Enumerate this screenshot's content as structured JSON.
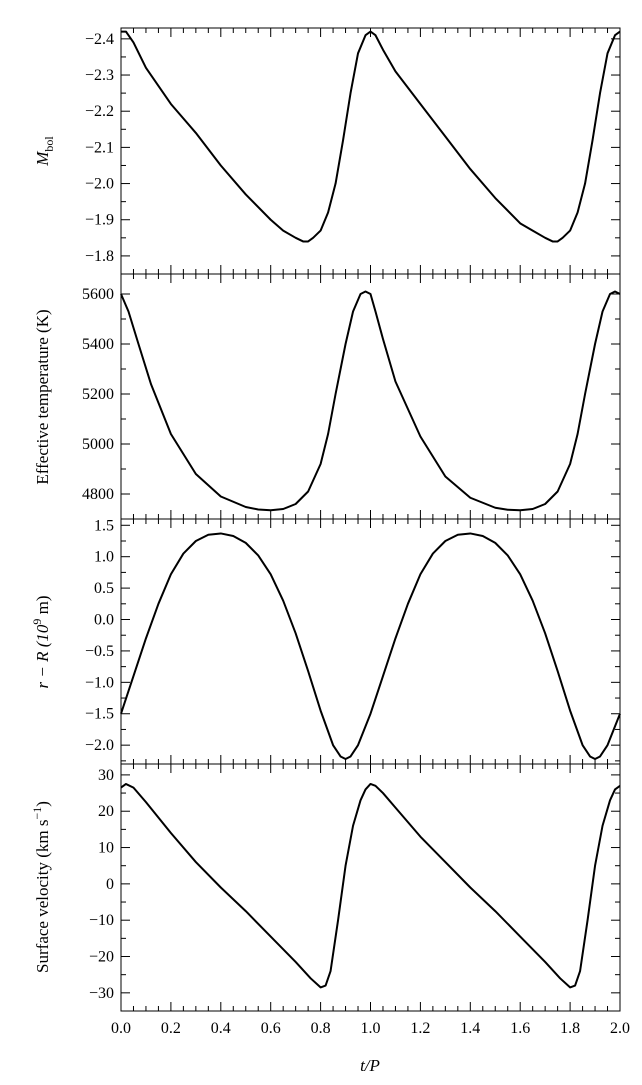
{
  "chart_data": [
    {
      "type": "line",
      "panel": "top",
      "ylabel": "M_bol",
      "ylabel_main": "M",
      "ylabel_sub": "bol",
      "ylim": [
        -1.75,
        -2.43
      ],
      "y_inverted": true,
      "yticks": [
        -2.4,
        -2.3,
        -2.2,
        -2.1,
        -2.0,
        -1.9,
        -1.8
      ],
      "ytick_labels": [
        "−2.4",
        "−2.3",
        "−2.2",
        "−2.1",
        "−2.0",
        "−1.9",
        "−1.8"
      ],
      "xlim": [
        0,
        2
      ],
      "series": [
        {
          "x": [
            0,
            0.02,
            0.05,
            0.1,
            0.2,
            0.3,
            0.4,
            0.5,
            0.6,
            0.65,
            0.7,
            0.73,
            0.75,
            0.77,
            0.8,
            0.83,
            0.86,
            0.89,
            0.92,
            0.95,
            0.98,
            1.0,
            1.02,
            1.05,
            1.1,
            1.2,
            1.3,
            1.4,
            1.5,
            1.6,
            1.65,
            1.7,
            1.73,
            1.75,
            1.77,
            1.8,
            1.83,
            1.86,
            1.89,
            1.92,
            1.95,
            1.98,
            2.0
          ],
          "y": [
            -2.42,
            -2.42,
            -2.39,
            -2.32,
            -2.22,
            -2.14,
            -2.05,
            -1.97,
            -1.9,
            -1.87,
            -1.85,
            -1.84,
            -1.84,
            -1.85,
            -1.87,
            -1.92,
            -2.0,
            -2.12,
            -2.25,
            -2.36,
            -2.41,
            -2.42,
            -2.41,
            -2.37,
            -2.31,
            -2.22,
            -2.13,
            -2.04,
            -1.96,
            -1.89,
            -1.87,
            -1.85,
            -1.84,
            -1.84,
            -1.85,
            -1.87,
            -1.92,
            -2.0,
            -2.12,
            -2.25,
            -2.36,
            -2.41,
            -2.42
          ]
        }
      ]
    },
    {
      "type": "line",
      "panel": "second",
      "ylabel": "Effective temperature (K)",
      "ylim": [
        4700,
        5680
      ],
      "yticks": [
        4800,
        5000,
        5200,
        5400,
        5600
      ],
      "ytick_labels": [
        "4800",
        "5000",
        "5200",
        "5400",
        "5600"
      ],
      "xlim": [
        0,
        2
      ],
      "series": [
        {
          "x": [
            0,
            0.03,
            0.07,
            0.12,
            0.2,
            0.3,
            0.4,
            0.5,
            0.55,
            0.6,
            0.65,
            0.7,
            0.75,
            0.8,
            0.83,
            0.86,
            0.9,
            0.93,
            0.96,
            0.98,
            1.0,
            1.02,
            1.05,
            1.1,
            1.2,
            1.3,
            1.4,
            1.5,
            1.55,
            1.6,
            1.65,
            1.7,
            1.75,
            1.8,
            1.83,
            1.86,
            1.9,
            1.93,
            1.96,
            1.98,
            2.0
          ],
          "y": [
            5600,
            5530,
            5400,
            5240,
            5040,
            4880,
            4790,
            4748,
            4738,
            4735,
            4740,
            4760,
            4810,
            4920,
            5040,
            5200,
            5400,
            5530,
            5600,
            5610,
            5600,
            5530,
            5420,
            5250,
            5030,
            4870,
            4785,
            4745,
            4737,
            4735,
            4740,
            4760,
            4810,
            4920,
            5040,
            5200,
            5400,
            5530,
            5600,
            5610,
            5600
          ]
        }
      ]
    },
    {
      "type": "line",
      "panel": "third",
      "ylabel": "r − R (10^9 m)",
      "ylabel_prefix": "r − R (10",
      "ylabel_sup": "9",
      "ylabel_suffix": " m)",
      "ylim": [
        -2.3,
        1.6
      ],
      "yticks": [
        1.5,
        1.0,
        0.5,
        0.0,
        -0.5,
        -1.0,
        -1.5,
        -2.0
      ],
      "ytick_labels": [
        "1.5",
        "1.0",
        "0.5",
        "0.0",
        "−0.5",
        "−1.0",
        "−1.5",
        "−2.0"
      ],
      "xlim": [
        0,
        2
      ],
      "series": [
        {
          "x": [
            0,
            0.05,
            0.1,
            0.15,
            0.2,
            0.25,
            0.3,
            0.35,
            0.4,
            0.45,
            0.5,
            0.55,
            0.6,
            0.65,
            0.7,
            0.75,
            0.8,
            0.85,
            0.88,
            0.9,
            0.92,
            0.95,
            1.0,
            1.05,
            1.1,
            1.15,
            1.2,
            1.25,
            1.3,
            1.35,
            1.4,
            1.45,
            1.5,
            1.55,
            1.6,
            1.65,
            1.7,
            1.75,
            1.8,
            1.85,
            1.88,
            1.9,
            1.92,
            1.95,
            2.0
          ],
          "y": [
            -1.5,
            -0.9,
            -0.3,
            0.25,
            0.72,
            1.05,
            1.25,
            1.35,
            1.37,
            1.33,
            1.22,
            1.02,
            0.72,
            0.3,
            -0.22,
            -0.82,
            -1.45,
            -2.0,
            -2.18,
            -2.22,
            -2.18,
            -2.0,
            -1.5,
            -0.9,
            -0.3,
            0.25,
            0.72,
            1.05,
            1.25,
            1.35,
            1.37,
            1.33,
            1.22,
            1.02,
            0.72,
            0.3,
            -0.22,
            -0.82,
            -1.45,
            -2.0,
            -2.18,
            -2.22,
            -2.18,
            -2.0,
            -1.5
          ]
        }
      ]
    },
    {
      "type": "line",
      "panel": "bottom",
      "ylabel": "Surface velocity (km s^−1)",
      "ylabel_prefix": "Surface velocity (km s",
      "ylabel_sup": "−1",
      "ylabel_suffix": ")",
      "xlabel": "t/P",
      "ylim": [
        -35,
        33
      ],
      "yticks": [
        30,
        20,
        10,
        0,
        -10,
        -20,
        -30
      ],
      "ytick_labels": [
        "30",
        "20",
        "10",
        "0",
        "−10",
        "−20",
        "−30"
      ],
      "xlim": [
        0,
        2
      ],
      "xticks": [
        0,
        0.2,
        0.4,
        0.6,
        0.8,
        1.0,
        1.2,
        1.4,
        1.6,
        1.8,
        2.0
      ],
      "xtick_labels": [
        "0.0",
        "0.2",
        "0.4",
        "0.6",
        "0.8",
        "1.0",
        "1.2",
        "1.4",
        "1.6",
        "1.8",
        "2.0"
      ],
      "series": [
        {
          "x": [
            0,
            0.02,
            0.05,
            0.1,
            0.2,
            0.3,
            0.4,
            0.5,
            0.6,
            0.7,
            0.76,
            0.8,
            0.82,
            0.84,
            0.87,
            0.9,
            0.93,
            0.96,
            0.98,
            1.0,
            1.02,
            1.05,
            1.1,
            1.2,
            1.3,
            1.4,
            1.5,
            1.6,
            1.7,
            1.76,
            1.8,
            1.82,
            1.84,
            1.87,
            1.9,
            1.93,
            1.96,
            1.98,
            2.0
          ],
          "y": [
            26.5,
            27.5,
            26.5,
            22.5,
            14,
            6,
            -1,
            -7.5,
            -14.5,
            -21.5,
            -26,
            -28.5,
            -28,
            -24,
            -10,
            5,
            16,
            23,
            26,
            27.5,
            27,
            25,
            21,
            13,
            6,
            -1,
            -7.5,
            -14.5,
            -21.5,
            -26,
            -28.5,
            -28,
            -24,
            -10,
            5,
            16,
            23,
            26,
            27
          ]
        }
      ]
    }
  ]
}
